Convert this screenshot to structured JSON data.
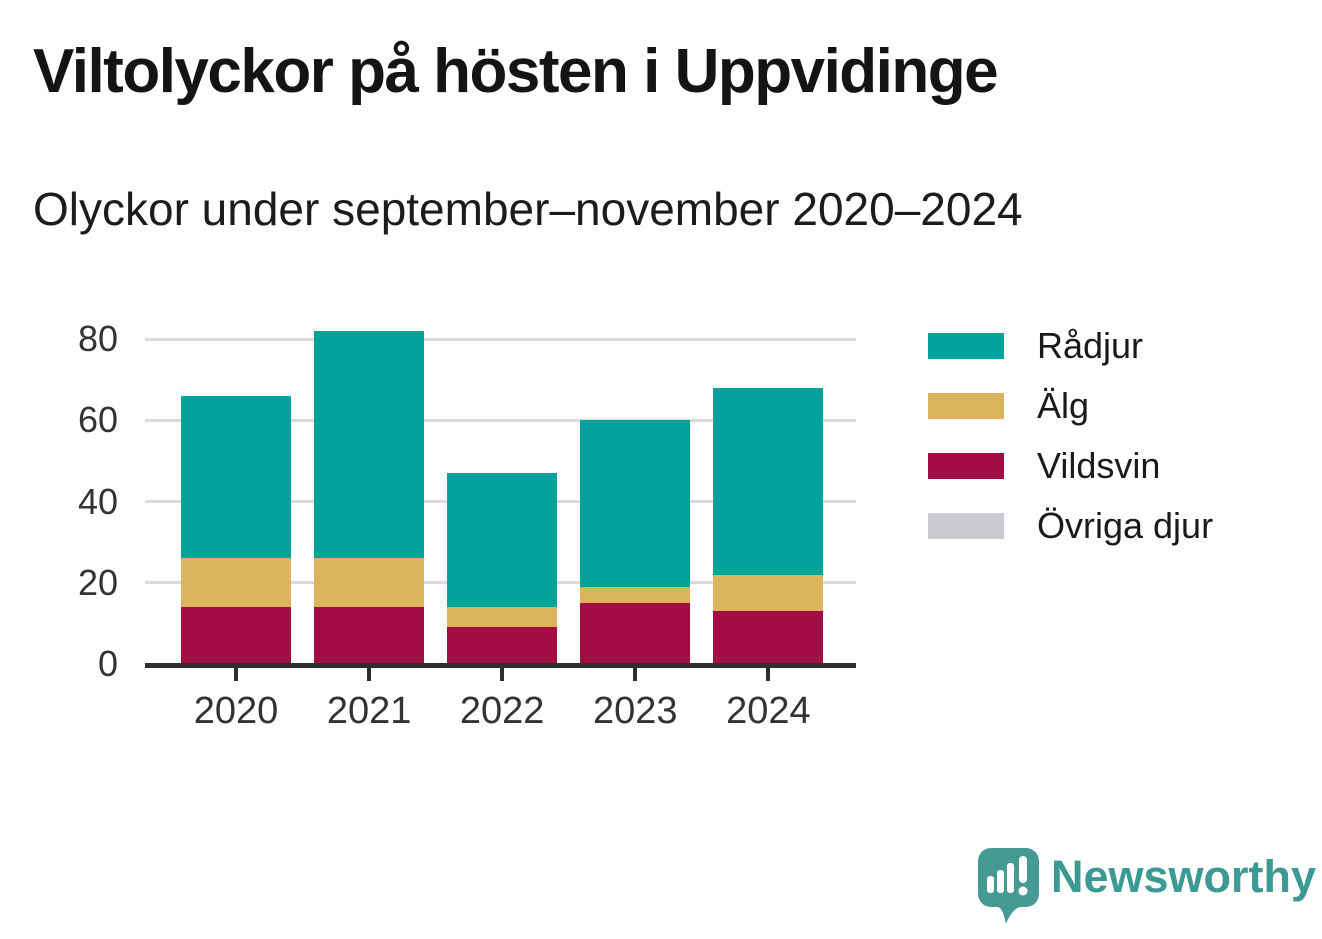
{
  "header": {
    "title": "Viltolyckor på hösten i Uppvidinge",
    "subtitle": "Olyckor under september–november 2020–2024"
  },
  "chart_data": {
    "type": "bar",
    "stacked": true,
    "title": "Viltolyckor på hösten i Uppvidinge",
    "subtitle": "Olyckor under september–november 2020–2024",
    "categories": [
      "2020",
      "2021",
      "2022",
      "2023",
      "2024"
    ],
    "series": [
      {
        "name": "Rådjur",
        "color": "#04a29a",
        "values": [
          40,
          56,
          33,
          41,
          46
        ]
      },
      {
        "name": "Älg",
        "color": "#dcb45e",
        "values": [
          12,
          12,
          5,
          4,
          9
        ]
      },
      {
        "name": "Vildsvin",
        "color": "#a20d44",
        "values": [
          14,
          14,
          9,
          15,
          13
        ]
      },
      {
        "name": "Övriga djur",
        "color": "#cacad1",
        "values": [
          0,
          0,
          0,
          0,
          0
        ]
      }
    ],
    "totals": [
      66,
      82,
      47,
      60,
      68
    ],
    "stack_order_bottom_to_top": [
      "Övriga djur",
      "Vildsvin",
      "Älg",
      "Rådjur"
    ],
    "xlabel": "",
    "ylabel": "",
    "yticks": [
      0,
      20,
      40,
      60,
      80
    ],
    "ylim": [
      0,
      84
    ],
    "grid": "horizontal",
    "legend_position": "right"
  },
  "branding": {
    "logo_text": "Newsworthy",
    "logo_color": "#3b9a93",
    "logo_icon": "newsworthy-speech-bubble-bar-chart-icon"
  },
  "style_colors": {
    "axis": "#2f2f2f",
    "gridline": "#dbdbdb",
    "tick_label": "#333333",
    "title_text": "#141414"
  }
}
